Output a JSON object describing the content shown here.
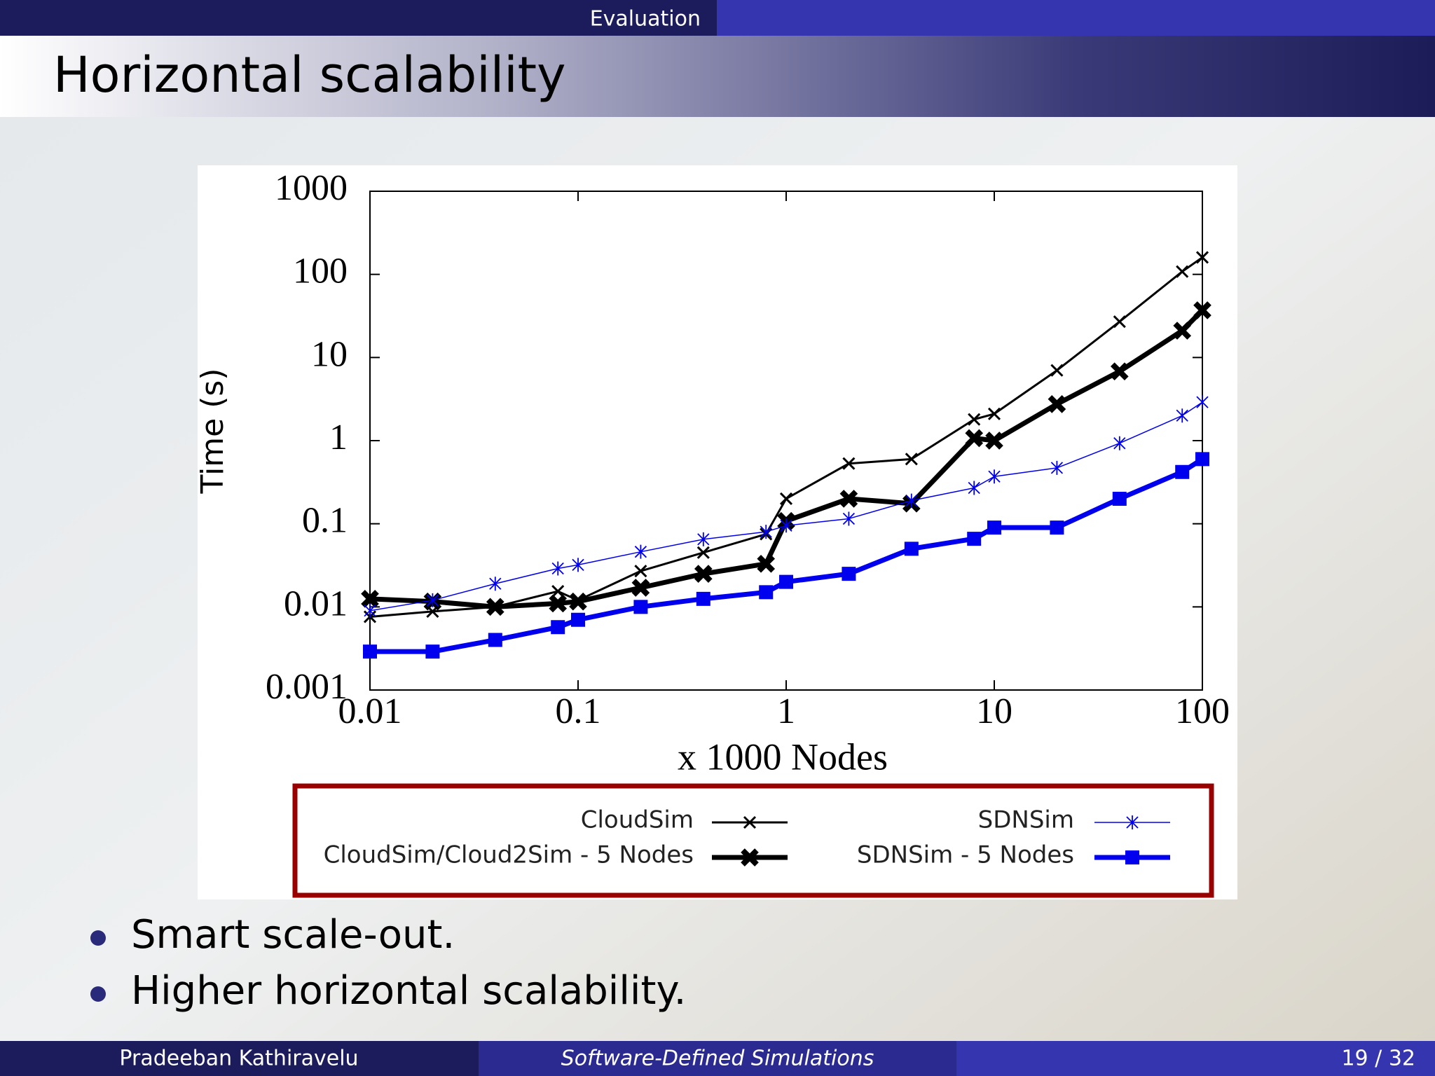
{
  "header": {
    "section": "Evaluation"
  },
  "title": "Horizontal scalability",
  "chart_data": {
    "type": "line",
    "x_label": "x 1000 Nodes",
    "y_label": "Time (s)",
    "x": [
      0.01,
      0.02,
      0.04,
      0.08,
      0.1,
      0.2,
      0.4,
      0.8,
      1,
      2,
      4,
      8,
      10,
      20,
      40,
      80,
      100
    ],
    "xscale": "log",
    "yscale": "log",
    "xlim": [
      0.01,
      100
    ],
    "ylim": [
      0.001,
      1000
    ],
    "xticks": [
      0.01,
      0.1,
      1,
      10,
      100
    ],
    "yticks": [
      0.001,
      0.01,
      0.1,
      1,
      10,
      100,
      1000
    ],
    "series": [
      {
        "name": "CloudSim",
        "color": "#000000",
        "marker": "x",
        "line_width": 3,
        "values": [
          0.0076,
          0.0088,
          0.01,
          0.0154,
          0.012,
          0.027,
          0.045,
          0.075,
          0.2,
          0.53,
          0.6,
          1.8,
          2.1,
          7,
          27,
          108,
          160
        ]
      },
      {
        "name": "CloudSim/Cloud2Sim - 5 Nodes",
        "color": "#000000",
        "marker": "X",
        "line_width": 7,
        "values": [
          0.0125,
          0.0116,
          0.01,
          0.011,
          0.0116,
          0.017,
          0.025,
          0.033,
          0.108,
          0.2,
          0.175,
          1.07,
          1.0,
          2.75,
          6.8,
          21,
          37
        ]
      },
      {
        "name": "SDNSim",
        "color": "#0000ee",
        "marker": "*",
        "line_width": 1.5,
        "values": [
          0.009,
          0.012,
          0.019,
          0.029,
          0.032,
          0.046,
          0.065,
          0.08,
          0.095,
          0.115,
          0.19,
          0.27,
          0.37,
          0.47,
          0.93,
          2,
          2.9
        ]
      },
      {
        "name": "SDNSim - 5 Nodes",
        "color": "#0000ee",
        "marker": "s",
        "line_width": 7,
        "values": [
          0.0029,
          0.0029,
          0.004,
          0.0057,
          0.007,
          0.01,
          0.0125,
          0.015,
          0.02,
          0.025,
          0.05,
          0.066,
          0.09,
          0.09,
          0.2,
          0.42,
          0.6
        ]
      }
    ]
  },
  "bullets": [
    "Smart scale-out.",
    "Higher horizontal scalability."
  ],
  "footer": {
    "author": "Pradeeban Kathiravelu",
    "talk": "Software-Defined Simulations",
    "page": "19 / 32"
  }
}
